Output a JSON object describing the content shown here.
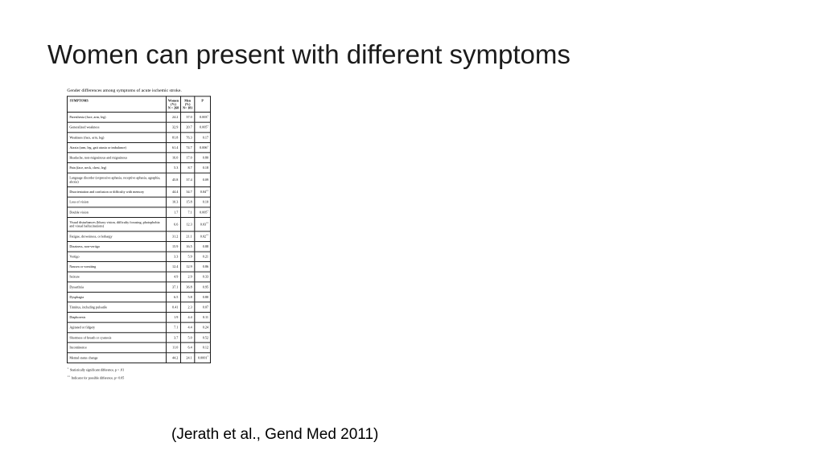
{
  "slide": {
    "title": "Women can present with different symptoms",
    "citation": "(Jerath et al., Gend Med 2011)"
  },
  "figure": {
    "caption": "Gender differences among symptoms of acute ischemic stroke.",
    "footnotes": [
      {
        "marker": "*",
        "text": "Statistically significant difference, p < .01"
      },
      {
        "marker": "**",
        "text": "Indicator for possible difference, p< 0.05"
      }
    ]
  },
  "chart_data": {
    "type": "table",
    "title": "Gender differences among symptoms of acute ischemic stroke.",
    "columns": [
      "SYMPTOMS",
      "Women\n(%)\nN = 268",
      "Men\n(%)\nN= 181",
      "P"
    ],
    "rows": [
      {
        "symptom": "Paresthesia (face, arm, leg)",
        "women": "24.2",
        "men": "37.0",
        "p": "0.003",
        "p_marker": "*"
      },
      {
        "symptom": "Generalized weakness",
        "women": "32.9",
        "men": "20.7",
        "p": "0.005",
        "p_marker": "*"
      },
      {
        "symptom": "Weakness (face, arm, leg)",
        "women": "81.8",
        "men": "76.3",
        "p": "0.17",
        "p_marker": ""
      },
      {
        "symptom": "Ataxia (arm, leg, gait ataxia or imbalance)",
        "women": "61.4",
        "men": "74.7",
        "p": "0.006",
        "p_marker": "*"
      },
      {
        "symptom": "Headache, non-migrainous and migrainous",
        "women": "16.0",
        "men": "17.0",
        "p": "0.80",
        "p_marker": ""
      },
      {
        "symptom": "Pain (face, neck, chest, leg)",
        "women": "5.3",
        "men": "8.7",
        "p": "0.18",
        "p_marker": ""
      },
      {
        "symptom": "Language disorder (expressive aphasia, receptive aphasia, agraphia, alexia)",
        "women": "45.8",
        "men": "37.4",
        "p": "0.09",
        "p_marker": ""
      },
      {
        "symptom": "Disorientation and confusion or difficulty with memory",
        "women": "44.4",
        "men": "34.7",
        "p": "0.04",
        "p_marker": "**"
      },
      {
        "symptom": "Loss of vision",
        "women": "10.3",
        "men": "15.8",
        "p": "0.10",
        "p_marker": ""
      },
      {
        "symptom": "Double vision",
        "women": "1.7",
        "men": "7.1",
        "p": "0.005",
        "p_marker": "*"
      },
      {
        "symptom": "Visual disturbances (blurry vision, difficulty focusing, photophobia and visual hallucinations)",
        "women": "6.6",
        "men": "12.3",
        "p": "0.03",
        "p_marker": "**"
      },
      {
        "symptom": "Fatigue, drowsiness, or lethargy",
        "women": "31.2",
        "men": "21.1",
        "p": "0.02",
        "p_marker": "**"
      },
      {
        "symptom": "Dizziness, non-vertigo",
        "women": "15.9",
        "men": "16.5",
        "p": "0.88",
        "p_marker": ""
      },
      {
        "symptom": "Vertigo",
        "women": "3.3",
        "men": "5.9",
        "p": "0.21",
        "p_marker": ""
      },
      {
        "symptom": "Nausea or vomiting",
        "women": "12.4",
        "men": "12.9",
        "p": "0.86",
        "p_marker": ""
      },
      {
        "symptom": "Seizure",
        "women": "4.9",
        "men": "2.9",
        "p": "0.33",
        "p_marker": ""
      },
      {
        "symptom": "Dysarthria",
        "women": "37.1",
        "men": "36.8",
        "p": "0.95",
        "p_marker": ""
      },
      {
        "symptom": "Dysphagia",
        "women": "6.5",
        "men": "5.8",
        "p": "0.80",
        "p_marker": ""
      },
      {
        "symptom": "Tinnitus, including pulsatile",
        "women": "0.41",
        "men": "2.3",
        "p": "0.07",
        "p_marker": ""
      },
      {
        "symptom": "Diaphoresis",
        "women": "1.9",
        "men": "4.4",
        "p": "0.11",
        "p_marker": ""
      },
      {
        "symptom": "Agitated or fidgety",
        "women": "7.1",
        "men": "4.4",
        "p": "0.24",
        "p_marker": ""
      },
      {
        "symptom": "Shortness of breath or cyanosis",
        "women": "3.7",
        "men": "5.0",
        "p": "0.52",
        "p_marker": ""
      },
      {
        "symptom": "Incontinence",
        "women": "11.0",
        "men": "6.4",
        "p": "0.12",
        "p_marker": ""
      },
      {
        "symptom": "Mental status change",
        "women": "44.2",
        "men": "24.1",
        "p": "0.0001",
        "p_marker": "*"
      }
    ]
  }
}
